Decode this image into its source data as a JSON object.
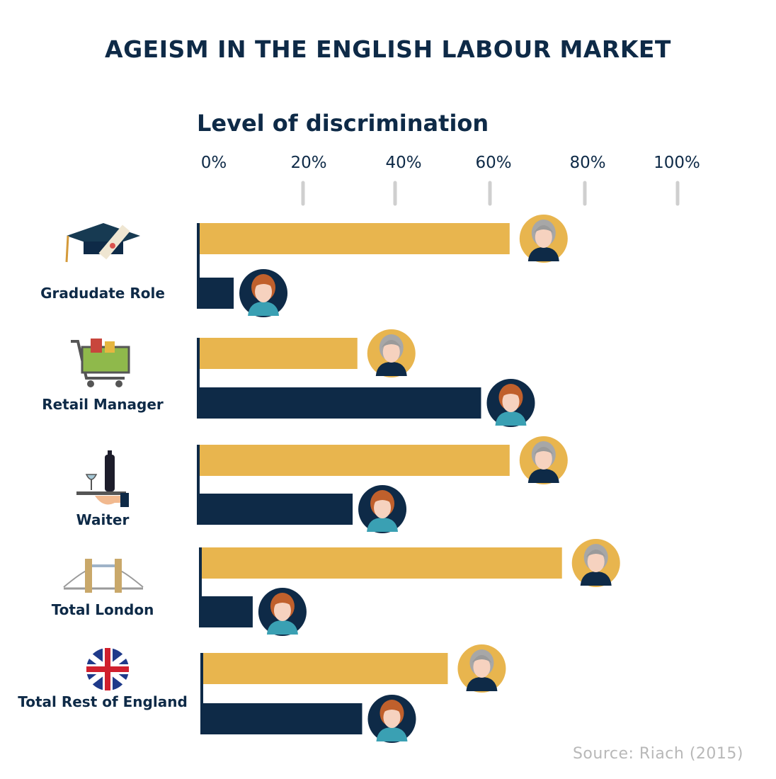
{
  "title": "AGEISM IN THE ENGLISH LABOUR MARKET",
  "source": "Source: Riach (2015)",
  "colors": {
    "older": "#e8b54e",
    "younger": "#0e2a47",
    "tick": "#cfcfcf"
  },
  "chart_data": {
    "type": "bar",
    "orientation": "horizontal",
    "xlabel": "Level of discrimination",
    "xlim": [
      0,
      100
    ],
    "ticks": [
      "0%",
      "20%",
      "40%",
      "60%",
      "80%",
      "100%"
    ],
    "categories": [
      "Gradudate Role",
      "Retail Manager",
      "Waiter",
      "Total London",
      "Total Rest of England"
    ],
    "category_icons": [
      "graduation-cap-icon",
      "shopping-cart-icon",
      "wine-tray-icon",
      "tower-bridge-icon",
      "union-jack-flag-icon"
    ],
    "series": [
      {
        "values": [
          65,
          33,
          65,
          76,
          52
        ]
      },
      {
        "values": [
          7,
          59,
          32,
          11,
          34
        ]
      }
    ]
  }
}
